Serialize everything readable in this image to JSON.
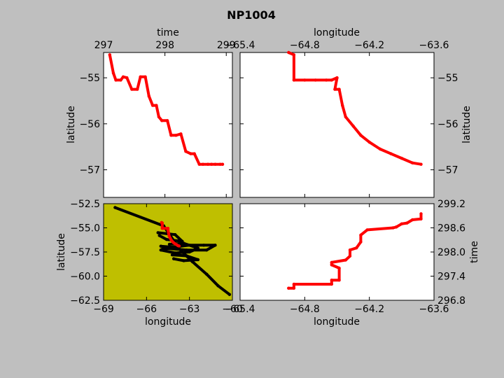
{
  "figure": {
    "title": "NP1004",
    "background": "#bfbfbf"
  },
  "chart_data": [
    {
      "id": "time_lat",
      "type": "line",
      "xlabel": "time",
      "ylabel": "latitude",
      "xlim": [
        297.0,
        299.1
      ],
      "ylim": [
        -57.6,
        -54.45
      ],
      "xticks": [
        297,
        298,
        299
      ],
      "xtick_labels": [
        "297",
        "298",
        "299"
      ],
      "yticks": [
        -55,
        -56,
        -57
      ],
      "ytick_labels": [
        "−55",
        "−56",
        "−57"
      ],
      "series": [
        {
          "color": "#ff0000",
          "x": [
            297.1,
            297.16,
            297.2,
            297.28,
            297.32,
            297.38,
            297.46,
            297.55,
            297.6,
            297.68,
            297.74,
            297.8,
            297.86,
            297.9,
            297.95,
            298.04,
            298.1,
            298.18,
            298.26,
            298.34,
            298.42,
            298.48,
            298.56,
            298.62,
            298.7,
            298.76,
            298.82,
            298.9,
            298.94
          ],
          "y": [
            -54.5,
            -54.9,
            -55.05,
            -55.05,
            -54.98,
            -55.0,
            -55.25,
            -55.25,
            -54.98,
            -54.98,
            -55.4,
            -55.6,
            -55.6,
            -55.85,
            -55.93,
            -55.93,
            -56.25,
            -56.25,
            -56.22,
            -56.6,
            -56.65,
            -56.65,
            -56.88,
            -56.88,
            -56.88,
            -56.88,
            -56.88,
            -56.88,
            -56.88
          ]
        }
      ]
    },
    {
      "id": "lon_lat",
      "type": "line",
      "xlabel": "longitude",
      "ylabel": "latitude",
      "xlim": [
        -65.4,
        -63.6
      ],
      "ylim": [
        -57.6,
        -54.45
      ],
      "xticks": [
        -65.4,
        -64.8,
        -64.2,
        -63.6
      ],
      "xtick_labels": [
        "−65.4",
        "−64.8",
        "−64.2",
        "−63.6"
      ],
      "yticks": [
        -55,
        -56,
        -57
      ],
      "ytick_labels": [
        "−55",
        "−56",
        "−57"
      ],
      "series": [
        {
          "color": "#ff0000",
          "x": [
            -64.95,
            -64.9,
            -64.9,
            -64.8,
            -64.7,
            -64.6,
            -64.55,
            -64.5,
            -64.52,
            -64.48,
            -64.45,
            -64.42,
            -64.35,
            -64.28,
            -64.2,
            -64.1,
            -64.0,
            -63.9,
            -63.8,
            -63.72
          ],
          "y": [
            -54.45,
            -54.5,
            -55.05,
            -55.05,
            -55.05,
            -55.05,
            -55.05,
            -55.0,
            -55.25,
            -55.25,
            -55.6,
            -55.85,
            -56.05,
            -56.25,
            -56.4,
            -56.55,
            -56.65,
            -56.75,
            -56.85,
            -56.88
          ]
        }
      ]
    },
    {
      "id": "lon_lat_overview",
      "type": "line",
      "xlabel": "longitude",
      "ylabel": "latitude",
      "background": "#bfbf00",
      "xlim": [
        -69,
        -60
      ],
      "ylim": [
        -62.5,
        -52.5
      ],
      "xticks": [
        -69,
        -66,
        -63,
        -60
      ],
      "xtick_labels": [
        "−69",
        "−66",
        "−63",
        "−60"
      ],
      "yticks": [
        -52.5,
        -55.0,
        -57.5,
        -60.0,
        -62.5
      ],
      "ytick_labels": [
        "−52.5",
        "−55.0",
        "−57.5",
        "−60.0",
        "−62.5"
      ],
      "series": [
        {
          "color": "#000000",
          "x": [
            -68.2,
            -64.8,
            -63.7,
            -62.8,
            -61.8,
            -61.0,
            -60.2
          ],
          "y": [
            -52.9,
            -54.8,
            -57.2,
            -58.5,
            -59.8,
            -61.0,
            -61.9
          ]
        },
        {
          "color": "#000000",
          "x": [
            -65.0,
            -64.2,
            -63.0,
            -62.0,
            -61.2,
            -61.8,
            -63.2,
            -64.8,
            -65.0,
            -64.0,
            -63.0,
            -62.4,
            -63.4,
            -64.4
          ],
          "y": [
            -56.9,
            -57.0,
            -56.8,
            -56.8,
            -56.8,
            -57.3,
            -57.3,
            -57.1,
            -57.3,
            -57.6,
            -57.5,
            -57.1,
            -56.6,
            -56.7
          ]
        },
        {
          "color": "#000000",
          "x": [
            -64.2,
            -63.2,
            -62.4,
            -63.4,
            -64.1
          ],
          "y": [
            -57.8,
            -57.9,
            -58.3,
            -58.4,
            -58.2
          ]
        },
        {
          "color": "#000000",
          "x": [
            -65.2,
            -64.0,
            -63.5,
            -64.6,
            -65.1
          ],
          "y": [
            -55.5,
            -55.7,
            -56.4,
            -56.2,
            -55.8
          ]
        },
        {
          "color": "#ff0000",
          "x": [
            -64.95,
            -64.9,
            -64.9,
            -64.5,
            -64.5,
            -64.45,
            -64.42,
            -64.35,
            -64.28,
            -64.2,
            -64.1,
            -64.0,
            -63.9,
            -63.8,
            -63.72
          ],
          "y": [
            -54.45,
            -54.5,
            -55.05,
            -55.05,
            -55.25,
            -55.6,
            -55.85,
            -56.05,
            -56.25,
            -56.4,
            -56.55,
            -56.65,
            -56.75,
            -56.85,
            -56.88
          ]
        }
      ]
    },
    {
      "id": "lon_time",
      "type": "line",
      "xlabel": "longitude",
      "ylabel": "time",
      "xlim": [
        -65.4,
        -63.6
      ],
      "ylim": [
        296.8,
        299.2
      ],
      "xticks": [
        -65.4,
        -64.8,
        -64.2,
        -63.6
      ],
      "xtick_labels": [
        "−65.4",
        "−64.8",
        "−64.2",
        "−63.6"
      ],
      "yticks": [
        296.8,
        297.4,
        298.0,
        298.6,
        299.2
      ],
      "ytick_labels": [
        "296.8",
        "297.4",
        "298.0",
        "298.6",
        "299.2"
      ],
      "series": [
        {
          "color": "#ff0000",
          "x": [
            -64.95,
            -64.9,
            -64.9,
            -64.55,
            -64.55,
            -64.48,
            -64.48,
            -64.55,
            -64.55,
            -64.42,
            -64.38,
            -64.38,
            -64.32,
            -64.28,
            -64.28,
            -64.22,
            -63.98,
            -63.95,
            -63.95,
            -63.9,
            -63.85,
            -63.8,
            -63.72,
            -63.72
          ],
          "y": [
            297.1,
            297.1,
            297.2,
            297.2,
            297.3,
            297.3,
            297.6,
            297.68,
            297.74,
            297.8,
            297.9,
            298.05,
            298.1,
            298.25,
            298.42,
            298.55,
            298.6,
            298.62,
            298.62,
            298.7,
            298.72,
            298.8,
            298.82,
            298.95
          ]
        }
      ]
    }
  ]
}
